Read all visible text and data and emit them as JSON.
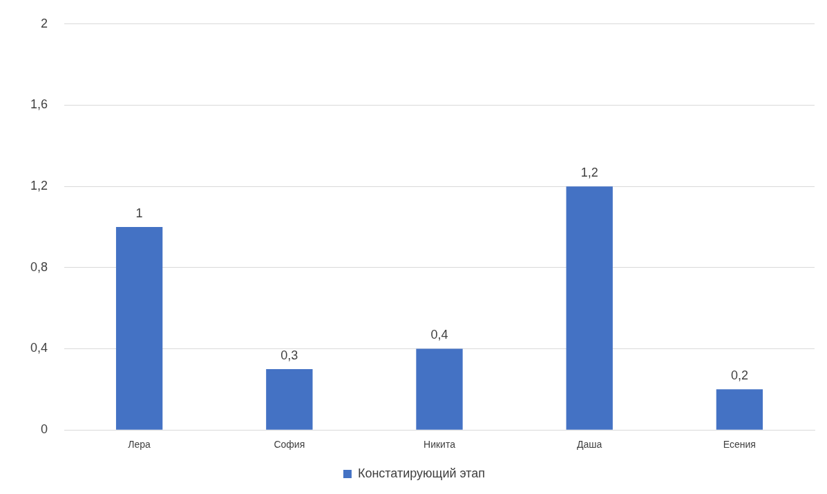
{
  "chart_data": {
    "type": "bar",
    "categories": [
      "Лера",
      "София",
      "Никита",
      "Даша",
      "Есения"
    ],
    "series": [
      {
        "name": "Констатирующий этап",
        "color": "#4472c4",
        "values": [
          1,
          0.3,
          0.4,
          1.2,
          0.2
        ],
        "value_labels": [
          "1",
          "0,3",
          "0,4",
          "1,2",
          "0,2"
        ]
      }
    ],
    "ylim": [
      0,
      2
    ],
    "yticks": [
      0,
      {
        "value": 0.4,
        "label": "0,4"
      },
      {
        "value": 0.8,
        "label": "0,8"
      },
      {
        "value": 1.2,
        "label": "1,2"
      },
      {
        "value": 1.6,
        "label": "1,6"
      },
      2
    ],
    "grid": "y",
    "legend": "bottom"
  }
}
